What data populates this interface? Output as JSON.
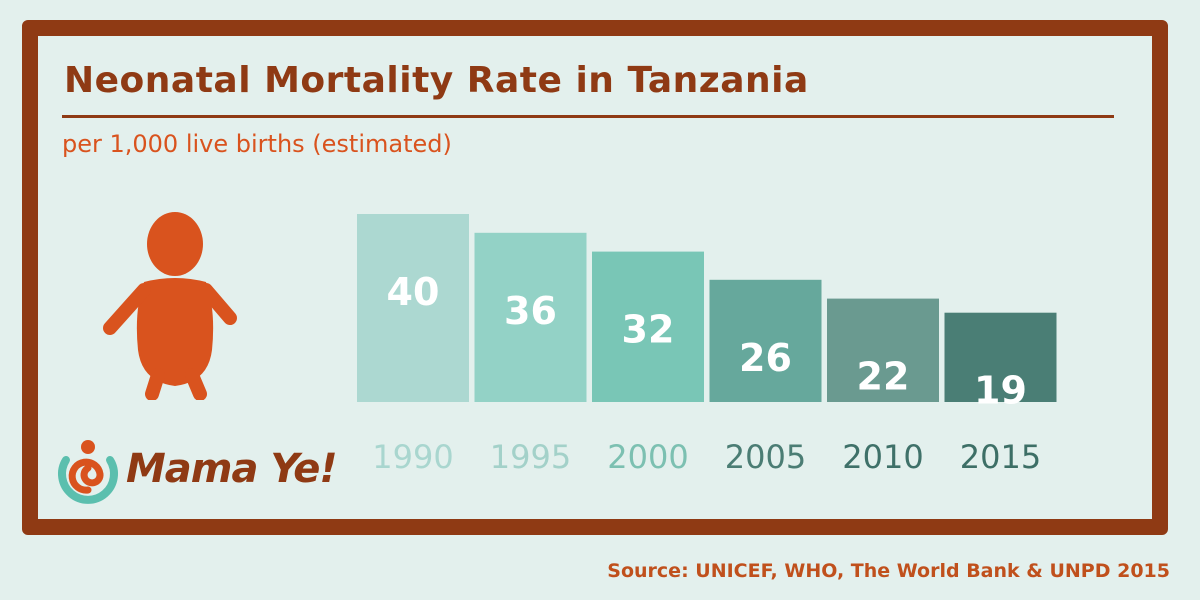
{
  "colors": {
    "frame": "#8f3a14",
    "accent": "#d9531e",
    "background": "#e3f0ed"
  },
  "logo": {
    "text": "Mama Ye!"
  },
  "source": "Source: UNICEF, WHO, The World Bank & UNPD 2015",
  "chart_data": {
    "type": "bar",
    "title": "Neonatal Mortality Rate in Tanzania",
    "subtitle": "per 1,000 live births (estimated)",
    "categories": [
      "1990",
      "1995",
      "2000",
      "2005",
      "2010",
      "2015"
    ],
    "values": [
      40,
      36,
      32,
      26,
      22,
      19
    ],
    "bar_colors": [
      "#acd8d1",
      "#93d2c6",
      "#79c6b6",
      "#66a89c",
      "#6a9a90",
      "#4a7e75"
    ],
    "label_colors": [
      "#a9d6cf",
      "#a3d1c9",
      "#7cc0b1",
      "#4b7d74",
      "#3f7169",
      "#3d6f66"
    ],
    "xlabel": "",
    "ylabel": "",
    "ylim": [
      0,
      40
    ]
  }
}
